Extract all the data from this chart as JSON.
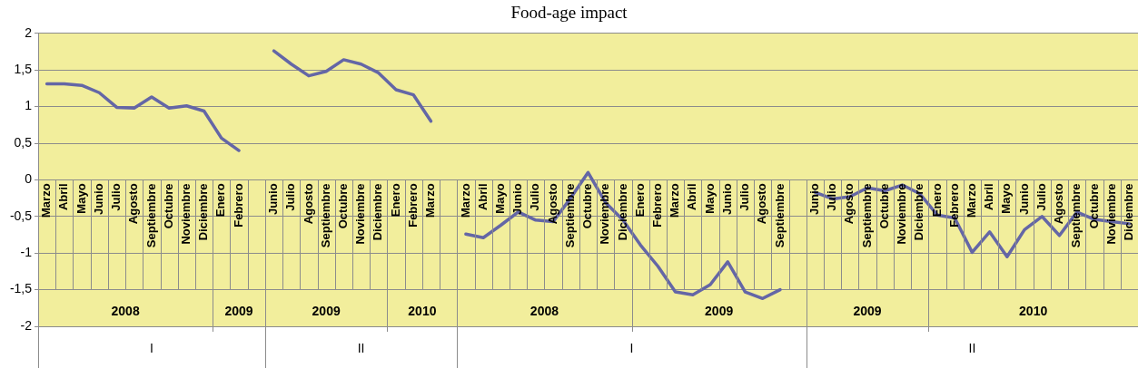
{
  "chart_data": {
    "type": "line",
    "title": "Food-age impact",
    "categories": [
      "Marzo",
      "Abril",
      "Mayo",
      "Junio",
      "Julio",
      "Agosto",
      "Septiembre",
      "Octubre",
      "Noviembre",
      "Diciembre",
      "Enero",
      "Febrero",
      null,
      "Junio",
      "Julio",
      "Agosto",
      "Septiembre",
      "Octubre",
      "Noviembre",
      "Diciembre",
      "Enero",
      "Febrero",
      "Marzo",
      null,
      "Marzo",
      "Abril",
      "Mayo",
      "Junio",
      "Julio",
      "Agosto",
      "Septiembre",
      "Octubre",
      "Noviembre",
      "Diciembre",
      "Enero",
      "Febrero",
      "Marzo",
      "Abril",
      "Mayo",
      "Junio",
      "Julio",
      "Agosto",
      "Septiembre",
      null,
      "Junio",
      "Julio",
      "Agosto",
      "Septiembre",
      "Octubre",
      "Noviembre",
      "Diciembre",
      "Enero",
      "Febrero",
      "Marzo",
      "Abril",
      "Mayo",
      "Junio",
      "Julio",
      "Agosto",
      "Septiembre",
      "Octubre",
      "Noviembre",
      "Diciembre"
    ],
    "series": [
      {
        "color": "#6466a6",
        "values": [
          1.31,
          1.31,
          1.29,
          1.19,
          0.99,
          0.98,
          1.13,
          0.98,
          1.01,
          0.94,
          0.57,
          0.4,
          null,
          null,
          null,
          null,
          null,
          null,
          null,
          null,
          null,
          null,
          null,
          null,
          null,
          null,
          null,
          null,
          null,
          null,
          null,
          null,
          null,
          null,
          null,
          null,
          null,
          null,
          null,
          null,
          null,
          null,
          null,
          null,
          null,
          null,
          null,
          null,
          null,
          null,
          null,
          null,
          null,
          null,
          null,
          null,
          null,
          null,
          null,
          null,
          null,
          null,
          null
        ]
      },
      {
        "color": "#6466a6",
        "values": [
          null,
          null,
          null,
          null,
          null,
          null,
          null,
          null,
          null,
          null,
          null,
          null,
          null,
          1.76,
          1.58,
          1.42,
          1.48,
          1.64,
          1.58,
          1.46,
          1.23,
          1.16,
          0.8,
          null,
          null,
          null,
          null,
          null,
          null,
          null,
          null,
          null,
          null,
          null,
          null,
          null,
          null,
          null,
          null,
          null,
          null,
          null,
          null,
          null,
          null,
          null,
          null,
          null,
          null,
          null,
          null,
          null,
          null,
          null,
          null,
          null,
          null,
          null,
          null,
          null,
          null,
          null,
          null
        ]
      },
      {
        "color": "#6466a6",
        "values": [
          null,
          null,
          null,
          null,
          null,
          null,
          null,
          null,
          null,
          null,
          null,
          null,
          null,
          null,
          null,
          null,
          null,
          null,
          null,
          null,
          null,
          null,
          null,
          null,
          -0.74,
          -0.79,
          -0.62,
          -0.44,
          -0.55,
          -0.57,
          -0.25,
          0.1,
          -0.31,
          -0.55,
          -0.89,
          -1.18,
          -1.53,
          -1.57,
          -1.43,
          -1.12,
          -1.53,
          -1.62,
          -1.5,
          null,
          null,
          null,
          null,
          null,
          null,
          null,
          null,
          null,
          null,
          null,
          null,
          null,
          null,
          null,
          null,
          null,
          null,
          null,
          null
        ]
      },
      {
        "color": "#6466a6",
        "values": [
          null,
          null,
          null,
          null,
          null,
          null,
          null,
          null,
          null,
          null,
          null,
          null,
          null,
          null,
          null,
          null,
          null,
          null,
          null,
          null,
          null,
          null,
          null,
          null,
          null,
          null,
          null,
          null,
          null,
          null,
          null,
          null,
          null,
          null,
          null,
          null,
          null,
          null,
          null,
          null,
          null,
          null,
          null,
          null,
          -0.17,
          -0.26,
          -0.23,
          -0.11,
          -0.15,
          -0.07,
          -0.19,
          -0.48,
          -0.52,
          -0.99,
          -0.71,
          -1.05,
          -0.68,
          -0.5,
          -0.76,
          -0.44,
          -0.54,
          -0.57,
          -0.6
        ]
      }
    ],
    "annotations": [
      "2008",
      "2009",
      "2009",
      "2010",
      "2008",
      "2009",
      "2009",
      "2010",
      "I",
      "II",
      "I",
      "II"
    ],
    "ylim": [
      -2,
      2
    ],
    "yticks": [
      {
        "value": -2,
        "label": "-2"
      },
      {
        "value": -1.5,
        "label": "-1,5"
      },
      {
        "value": -1,
        "label": "-1"
      },
      {
        "value": -0.5,
        "label": "-0,5"
      },
      {
        "value": 0,
        "label": "0"
      },
      {
        "value": 0.5,
        "label": "0,5"
      },
      {
        "value": 1,
        "label": "1"
      },
      {
        "value": 1.5,
        "label": "1,5"
      },
      {
        "value": 2,
        "label": "2"
      }
    ],
    "grid": "y",
    "marker": "none",
    "legend": false
  }
}
